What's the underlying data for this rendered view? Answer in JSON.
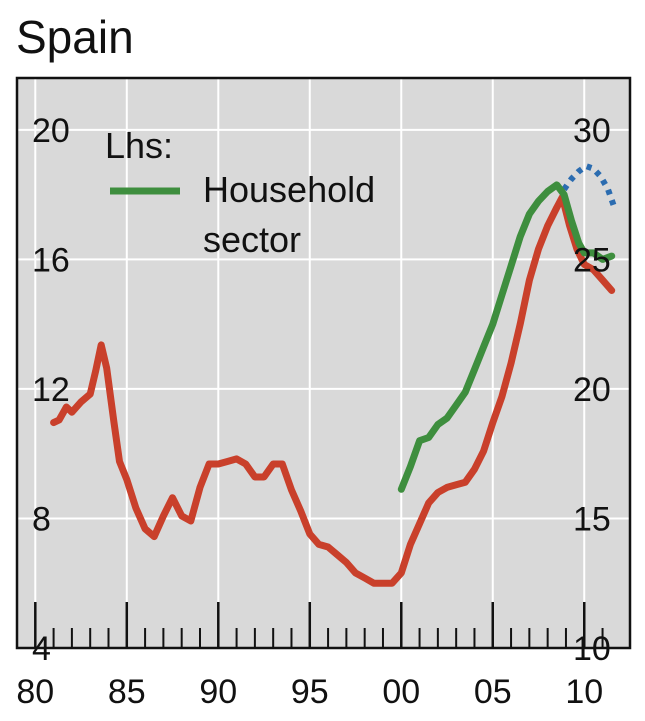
{
  "chart_data": {
    "type": "line",
    "title": "Spain",
    "grid": true,
    "legend_position": "top-left",
    "legend": {
      "prefix": "Lhs:",
      "entries": [
        "Household",
        "sector"
      ]
    },
    "x_ticks": [
      "80",
      "85",
      "90",
      "95",
      "00",
      "05",
      "10"
    ],
    "x_range": [
      1979,
      2012.5
    ],
    "y_left": {
      "ticks": [
        "4",
        "8",
        "12",
        "16",
        "20"
      ],
      "range": [
        4,
        21.6
      ]
    },
    "y_right": {
      "ticks": [
        "10",
        "15",
        "20",
        "25",
        "30"
      ],
      "range": [
        10,
        32
      ]
    },
    "colors": {
      "household": "#3e8e3e",
      "red": "#c9402b",
      "blue": "#2b6cb0",
      "grid": "#ffffff",
      "background": "#d9d9d9"
    },
    "series": [
      {
        "name": "Household sector",
        "axis": "left",
        "color": "#3e8e3e",
        "style": "solid",
        "x": [
          2000.0,
          2000.5,
          2001.0,
          2001.5,
          2002.0,
          2002.5,
          2003.0,
          2003.5,
          2004.0,
          2004.5,
          2005.0,
          2005.5,
          2006.0,
          2006.5,
          2007.0,
          2007.5,
          2008.0,
          2008.5,
          2008.9,
          2009.3,
          2009.7,
          2010.0,
          2010.5,
          2011.0,
          2011.5
        ],
        "y": [
          8.9,
          9.6,
          10.4,
          10.5,
          10.9,
          11.1,
          11.5,
          11.9,
          12.6,
          13.3,
          14.0,
          14.9,
          15.8,
          16.7,
          17.4,
          17.8,
          18.1,
          18.3,
          18.0,
          17.2,
          16.5,
          16.2,
          16.2,
          16.0,
          16.1
        ]
      },
      {
        "name": "",
        "axis": "right",
        "color": "#c9402b",
        "style": "solid",
        "x": [
          1981.0,
          1981.3,
          1981.7,
          1982.0,
          1982.5,
          1983.0,
          1983.3,
          1983.6,
          1983.9,
          1984.3,
          1984.6,
          1985.0,
          1985.5,
          1986.0,
          1986.5,
          1987.0,
          1987.5,
          1988.0,
          1988.5,
          1989.0,
          1989.5,
          1990.0,
          1990.5,
          1991.0,
          1991.5,
          1992.0,
          1992.5,
          1993.0,
          1993.5,
          1994.0,
          1994.5,
          1995.0,
          1995.5,
          1996.0,
          1996.5,
          1997.0,
          1997.5,
          1998.0,
          1998.5,
          1999.0,
          1999.5,
          2000.0,
          2000.5,
          2001.0,
          2001.5,
          2002.0,
          2002.5,
          2003.0,
          2003.5,
          2004.0,
          2004.5,
          2005.0,
          2005.5,
          2006.0,
          2006.5,
          2007.0,
          2007.5,
          2008.0,
          2008.5,
          2008.8,
          2009.2,
          2009.6,
          2010.0,
          2010.5,
          2011.0,
          2011.5
        ],
        "y": [
          18.7,
          18.8,
          19.3,
          19.1,
          19.5,
          19.8,
          20.7,
          21.7,
          20.8,
          18.7,
          17.2,
          16.5,
          15.4,
          14.6,
          14.3,
          15.1,
          15.8,
          15.1,
          14.9,
          16.2,
          17.1,
          17.1,
          17.2,
          17.3,
          17.1,
          16.6,
          16.6,
          17.1,
          17.1,
          16.1,
          15.3,
          14.4,
          14.0,
          13.9,
          13.6,
          13.3,
          12.9,
          12.7,
          12.5,
          12.5,
          12.5,
          12.9,
          14.0,
          14.8,
          15.6,
          16.0,
          16.2,
          16.3,
          16.4,
          16.9,
          17.6,
          18.7,
          19.7,
          21.0,
          22.5,
          24.2,
          25.4,
          26.3,
          27.0,
          27.4,
          26.3,
          25.4,
          24.8,
          24.6,
          24.2,
          23.8
        ]
      },
      {
        "name": "",
        "axis": "right",
        "color": "#2b6cb0",
        "style": "dotted",
        "x": [
          2008.9,
          2009.3,
          2009.7,
          2010.1,
          2010.5,
          2010.9,
          2011.3,
          2011.6
        ],
        "y": [
          27.7,
          28.1,
          28.4,
          28.6,
          28.5,
          28.2,
          27.7,
          27.1
        ]
      }
    ]
  }
}
